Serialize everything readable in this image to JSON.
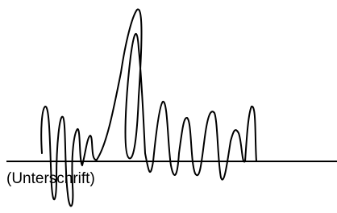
{
  "signature_field": {
    "label": "(Unterschrift)"
  }
}
